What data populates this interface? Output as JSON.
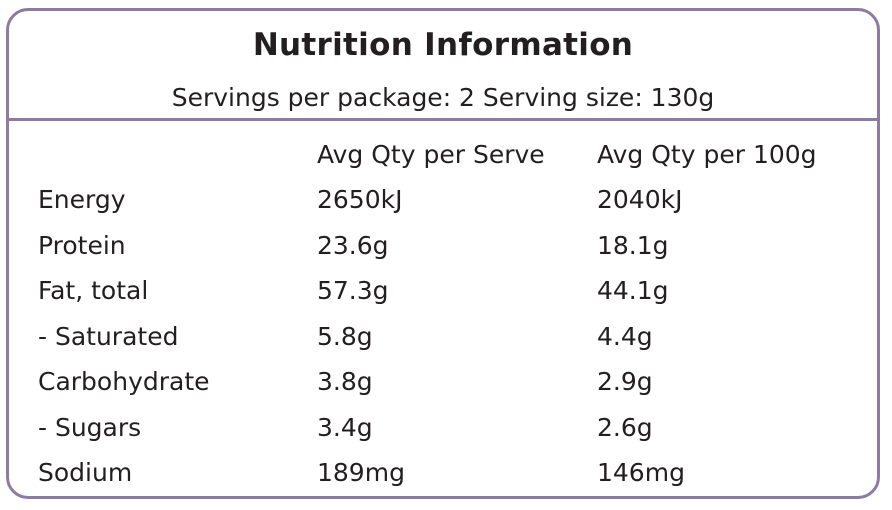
{
  "panel": {
    "title": "Nutrition Information",
    "servings_line": "Servings per package: 2 Serving size: 130g",
    "border_color": "#8e7ba1"
  },
  "table": {
    "headers": [
      "",
      "Avg Qty per Serve",
      "Avg Qty per 100g"
    ],
    "rows": [
      {
        "name": "Energy",
        "per_serve": "2650kJ",
        "per_100g": "2040kJ"
      },
      {
        "name": "Protein",
        "per_serve": "23.6g",
        "per_100g": "18.1g"
      },
      {
        "name": "Fat, total",
        "per_serve": "57.3g",
        "per_100g": "44.1g"
      },
      {
        "name": "- Saturated",
        "per_serve": "5.8g",
        "per_100g": "4.4g"
      },
      {
        "name": "Carbohydrate",
        "per_serve": "3.8g",
        "per_100g": "2.9g"
      },
      {
        "name": "- Sugars",
        "per_serve": "3.4g",
        "per_100g": "2.6g"
      },
      {
        "name": "Sodium",
        "per_serve": "189mg",
        "per_100g": "146mg"
      }
    ]
  }
}
